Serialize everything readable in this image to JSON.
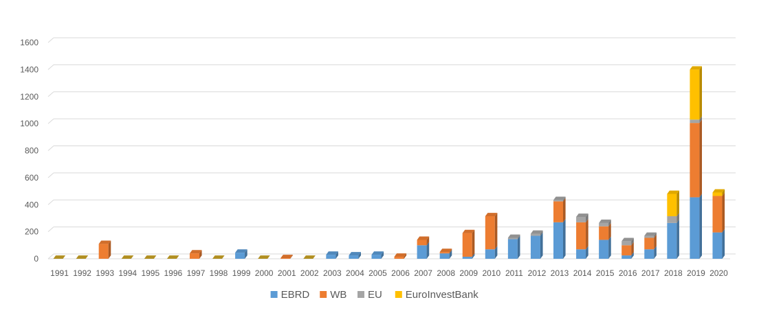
{
  "chart_data": {
    "type": "bar",
    "stacked": true,
    "style": "3d-column",
    "grid": true,
    "legend_position": "bottom",
    "categories": [
      "1991",
      "1992",
      "1993",
      "1994",
      "1995",
      "1996",
      "1997",
      "1998",
      "1999",
      "2000",
      "2001",
      "2002",
      "2003",
      "2004",
      "2005",
      "2006",
      "2007",
      "2008",
      "2009",
      "2010",
      "2011",
      "2012",
      "2013",
      "2014",
      "2015",
      "2016",
      "2017",
      "2018",
      "2019",
      "2020"
    ],
    "series": [
      {
        "name": "EBRD",
        "color": "#5B9BD5",
        "values": [
          0,
          0,
          0,
          0,
          0,
          0,
          0,
          0,
          45,
          0,
          0,
          0,
          30,
          25,
          30,
          0,
          100,
          40,
          15,
          70,
          145,
          170,
          270,
          70,
          140,
          25,
          70,
          265,
          455,
          195
        ]
      },
      {
        "name": "WB",
        "color": "#ED7D31",
        "values": [
          0,
          0,
          110,
          0,
          0,
          0,
          40,
          0,
          0,
          0,
          5,
          0,
          0,
          0,
          0,
          15,
          40,
          10,
          175,
          245,
          0,
          0,
          155,
          200,
          100,
          75,
          85,
          0,
          550,
          270
        ]
      },
      {
        "name": "EU",
        "color": "#A5A5A5",
        "values": [
          0,
          0,
          0,
          0,
          0,
          0,
          0,
          0,
          0,
          0,
          0,
          0,
          0,
          0,
          0,
          0,
          0,
          0,
          0,
          0,
          10,
          15,
          10,
          40,
          25,
          30,
          15,
          50,
          25,
          0
        ]
      },
      {
        "name": "EuroInvestBank",
        "color": "#FFC000",
        "values": [
          0,
          0,
          0,
          0,
          0,
          0,
          0,
          0,
          0,
          0,
          0,
          0,
          0,
          0,
          0,
          0,
          0,
          0,
          0,
          0,
          0,
          0,
          0,
          0,
          0,
          0,
          0,
          165,
          370,
          25
        ]
      }
    ],
    "ylim": [
      0,
      1600
    ],
    "yticks": [
      "0",
      "200",
      "400",
      "600",
      "800",
      "1000",
      "1200",
      "1400",
      "1600"
    ],
    "title": "",
    "xlabel": "",
    "ylabel": ""
  }
}
